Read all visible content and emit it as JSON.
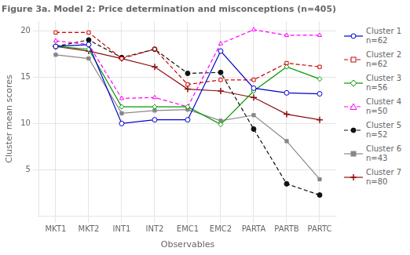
{
  "chart_data": {
    "type": "line",
    "title": "Figure 3a. Model 2: Price determination and misconceptions (n=405)",
    "xlabel": "Observables",
    "ylabel": "Cluster mean scores",
    "categories": [
      "MKT1",
      "MKT2",
      "INT1",
      "INT2",
      "EMC1",
      "EMC2",
      "PARTA",
      "PARTB",
      "PARTC"
    ],
    "series": [
      {
        "name": "Cluster 1\nn=62",
        "color": "#0000cc",
        "marker": "circle_open",
        "line_style": "solid",
        "values": [
          18.3,
          18.5,
          10.0,
          10.4,
          10.4,
          17.8,
          13.8,
          13.3,
          13.2
        ]
      },
      {
        "name": "Cluster 2\nn=62",
        "color": "#cc0000",
        "marker": "square_open",
        "line_style": "dashed",
        "values": [
          19.8,
          19.8,
          17.0,
          18.0,
          14.2,
          14.7,
          14.7,
          16.5,
          16.1
        ]
      },
      {
        "name": "Cluster 3\nn=56",
        "color": "#009900",
        "marker": "diamond_open",
        "line_style": "solid",
        "values": [
          18.3,
          18.0,
          11.8,
          11.8,
          11.8,
          9.9,
          13.5,
          16.1,
          14.8
        ]
      },
      {
        "name": "Cluster 4\nn=50",
        "color": "#ff00ff",
        "marker": "triangle_open",
        "line_style": "dashed",
        "values": [
          18.9,
          18.5,
          12.7,
          12.8,
          11.8,
          18.6,
          20.1,
          19.5,
          19.5
        ]
      },
      {
        "name": "Cluster 5\nn=52",
        "color": "#111111",
        "marker": "circle",
        "line_style": "dashed",
        "values": [
          18.3,
          19.0,
          17.1,
          18.0,
          15.4,
          15.5,
          9.4,
          3.5,
          2.3
        ]
      },
      {
        "name": "Cluster 6\nn=43",
        "color": "#888888",
        "marker": "square",
        "line_style": "solid",
        "values": [
          17.4,
          17.0,
          11.1,
          11.4,
          11.5,
          10.3,
          10.9,
          8.1,
          4.0
        ]
      },
      {
        "name": "Cluster 7\nn=80",
        "color": "#8b1010",
        "marker": "plus",
        "line_style": "solid",
        "values": [
          18.3,
          17.8,
          17.0,
          16.1,
          13.7,
          13.5,
          12.8,
          11.0,
          10.4
        ]
      }
    ],
    "ylim": [
      0,
      21
    ],
    "yticks": [
      5,
      10,
      15,
      20
    ],
    "grid": true,
    "legend": "right"
  }
}
